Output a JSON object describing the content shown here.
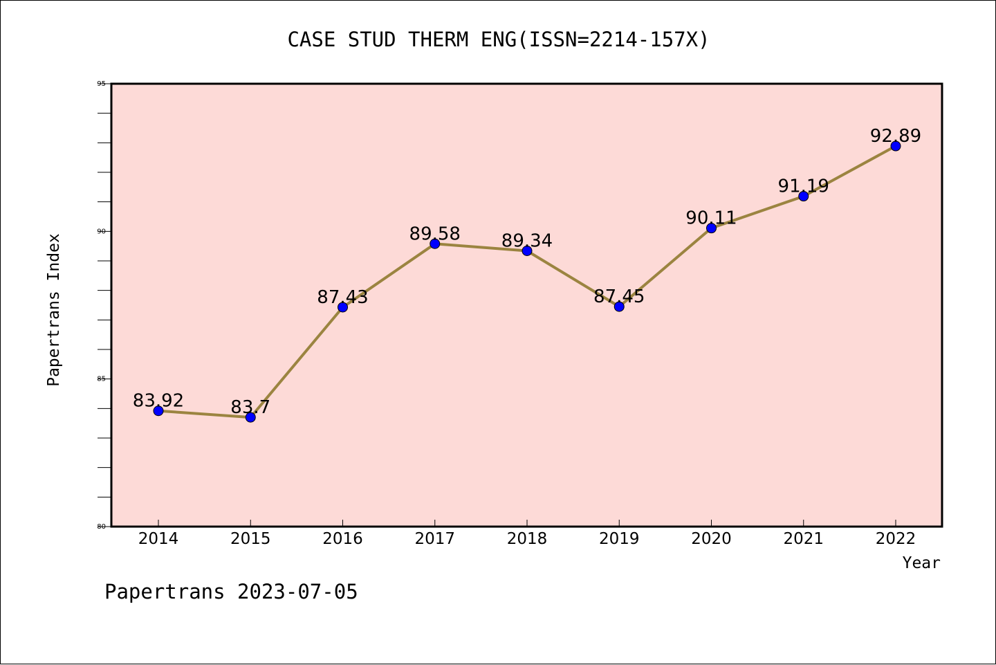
{
  "chart_data": {
    "type": "line",
    "title": "CASE STUD THERM ENG(ISSN=2214-157X)",
    "xlabel": "Year",
    "ylabel": "Papertrans Index",
    "x": [
      "2014",
      "2015",
      "2016",
      "2017",
      "2018",
      "2019",
      "2020",
      "2021",
      "2022"
    ],
    "series": [
      {
        "values": [
          83.92,
          83.7,
          87.43,
          89.58,
          89.34,
          87.45,
          90.11,
          91.19,
          92.89
        ],
        "labels": [
          "83.92",
          "83.7",
          "87.43",
          "89.58",
          "89.34",
          "87.45",
          "90.11",
          "91.19",
          "92.89"
        ],
        "line_color": "#9b8440",
        "marker_color": "#0000ff"
      }
    ],
    "ylim": [
      80,
      95
    ],
    "y_ticks": [
      "80",
      "85",
      "90",
      "95"
    ],
    "grid": false,
    "plot_background": "#fddad7"
  },
  "footer": {
    "note": "Papertrans 2023-07-05"
  }
}
